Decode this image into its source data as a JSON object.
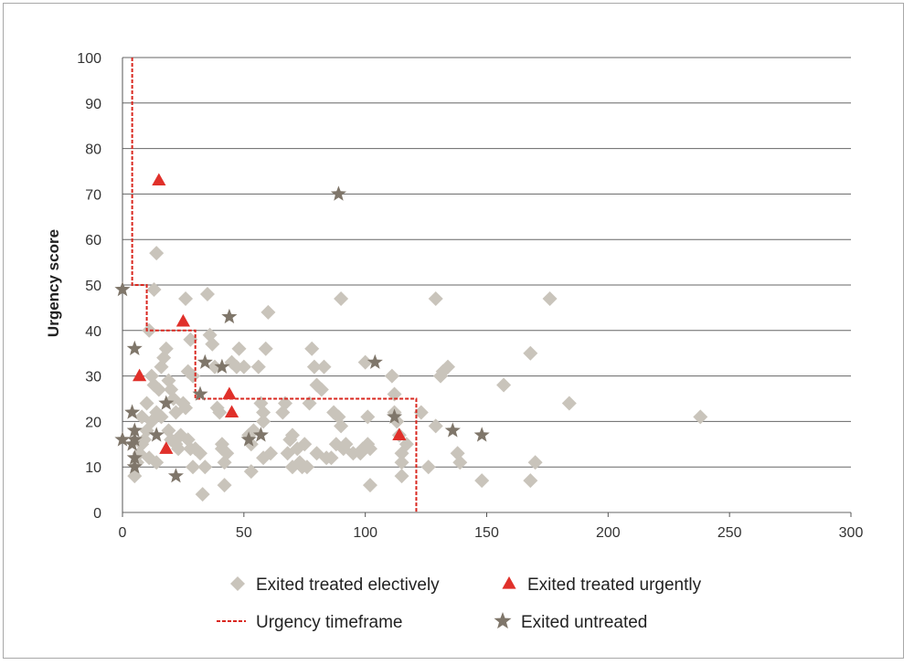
{
  "chart_data": {
    "type": "scatter",
    "title": "",
    "xlabel": "",
    "ylabel": "Urgency score",
    "xlim": [
      0,
      300
    ],
    "ylim": [
      0,
      100
    ],
    "xticks": [
      0,
      50,
      100,
      150,
      200,
      250,
      300
    ],
    "yticks": [
      0,
      10,
      20,
      30,
      40,
      50,
      60,
      70,
      80,
      90,
      100
    ],
    "grid": "horizontal",
    "legend_position": "bottom",
    "series": [
      {
        "name": "Exited treated electively",
        "marker": "diamond",
        "color": "#c9c4bb",
        "points": [
          [
            14,
            57
          ],
          [
            13,
            49
          ],
          [
            11,
            40
          ],
          [
            12,
            30
          ],
          [
            13,
            28
          ],
          [
            15,
            27
          ],
          [
            10,
            24
          ],
          [
            14,
            22
          ],
          [
            16,
            21
          ],
          [
            12,
            20
          ],
          [
            8,
            21
          ],
          [
            10,
            18
          ],
          [
            9,
            16
          ],
          [
            11,
            12
          ],
          [
            14,
            11
          ],
          [
            5,
            8
          ],
          [
            6,
            11
          ],
          [
            7,
            13
          ],
          [
            8,
            15
          ],
          [
            16,
            32
          ],
          [
            17,
            34
          ],
          [
            18,
            36
          ],
          [
            19,
            29
          ],
          [
            20,
            27
          ],
          [
            21,
            25
          ],
          [
            22,
            22
          ],
          [
            19,
            18
          ],
          [
            20,
            16
          ],
          [
            22,
            15
          ],
          [
            23,
            14
          ],
          [
            24,
            17
          ],
          [
            26,
            47
          ],
          [
            28,
            38
          ],
          [
            27,
            31
          ],
          [
            29,
            30
          ],
          [
            25,
            24
          ],
          [
            26,
            23
          ],
          [
            27,
            16
          ],
          [
            28,
            14
          ],
          [
            29,
            10
          ],
          [
            30,
            14
          ],
          [
            32,
            13
          ],
          [
            33,
            4
          ],
          [
            34,
            10
          ],
          [
            35,
            48
          ],
          [
            36,
            39
          ],
          [
            37,
            37
          ],
          [
            38,
            32
          ],
          [
            39,
            23
          ],
          [
            40,
            22
          ],
          [
            41,
            15
          ],
          [
            41,
            14
          ],
          [
            42,
            11
          ],
          [
            43,
            13
          ],
          [
            42,
            6
          ],
          [
            45,
            33
          ],
          [
            47,
            32
          ],
          [
            48,
            36
          ],
          [
            50,
            32
          ],
          [
            52,
            17
          ],
          [
            53,
            15
          ],
          [
            53,
            9
          ],
          [
            54,
            18
          ],
          [
            56,
            32
          ],
          [
            57,
            24
          ],
          [
            58,
            22
          ],
          [
            58,
            20
          ],
          [
            58,
            12
          ],
          [
            59,
            36
          ],
          [
            60,
            44
          ],
          [
            61,
            13
          ],
          [
            66,
            22
          ],
          [
            67,
            24
          ],
          [
            68,
            13
          ],
          [
            69,
            16
          ],
          [
            70,
            17
          ],
          [
            70,
            10
          ],
          [
            72,
            14
          ],
          [
            73,
            11
          ],
          [
            74,
            10
          ],
          [
            75,
            15
          ],
          [
            76,
            10
          ],
          [
            77,
            24
          ],
          [
            78,
            36
          ],
          [
            79,
            32
          ],
          [
            80,
            28
          ],
          [
            80,
            13
          ],
          [
            82,
            27
          ],
          [
            83,
            32
          ],
          [
            84,
            12
          ],
          [
            86,
            12
          ],
          [
            87,
            22
          ],
          [
            88,
            15
          ],
          [
            89,
            21
          ],
          [
            90,
            19
          ],
          [
            90,
            47
          ],
          [
            91,
            14
          ],
          [
            92,
            15
          ],
          [
            95,
            13
          ],
          [
            98,
            13
          ],
          [
            99,
            14
          ],
          [
            100,
            33
          ],
          [
            101,
            15
          ],
          [
            101,
            21
          ],
          [
            102,
            6
          ],
          [
            102,
            14
          ],
          [
            111,
            30
          ],
          [
            112,
            26
          ],
          [
            112,
            22
          ],
          [
            113,
            20
          ],
          [
            114,
            17
          ],
          [
            115,
            13
          ],
          [
            115,
            11
          ],
          [
            115,
            8
          ],
          [
            117,
            15
          ],
          [
            123,
            22
          ],
          [
            126,
            10
          ],
          [
            129,
            19
          ],
          [
            129,
            47
          ],
          [
            131,
            30
          ],
          [
            132,
            31
          ],
          [
            134,
            32
          ],
          [
            138,
            13
          ],
          [
            139,
            11
          ],
          [
            148,
            7
          ],
          [
            157,
            28
          ],
          [
            168,
            7
          ],
          [
            168,
            35
          ],
          [
            170,
            11
          ],
          [
            176,
            47
          ],
          [
            184,
            24
          ],
          [
            238,
            21
          ]
        ]
      },
      {
        "name": "Exited treated urgently",
        "marker": "triangle",
        "color": "#e0302a",
        "points": [
          [
            15,
            73
          ],
          [
            25,
            42
          ],
          [
            7,
            30
          ],
          [
            44,
            26
          ],
          [
            45,
            22
          ],
          [
            18,
            14
          ],
          [
            114,
            17
          ]
        ]
      },
      {
        "name": "Urgency timeframe",
        "marker": "line",
        "color": "#d9271f",
        "points": [
          [
            4,
            100
          ],
          [
            4,
            50
          ],
          [
            10,
            50
          ],
          [
            10,
            40
          ],
          [
            30,
            40
          ],
          [
            30,
            25
          ],
          [
            121,
            25
          ],
          [
            121,
            0
          ]
        ]
      },
      {
        "name": "Exited untreated",
        "marker": "star",
        "color": "#7f766a",
        "points": [
          [
            89,
            70
          ],
          [
            0,
            49
          ],
          [
            44,
            43
          ],
          [
            5,
            36
          ],
          [
            34,
            33
          ],
          [
            41,
            32
          ],
          [
            104,
            33
          ],
          [
            18,
            24
          ],
          [
            32,
            26
          ],
          [
            4,
            22
          ],
          [
            5,
            18
          ],
          [
            14,
            17
          ],
          [
            57,
            17
          ],
          [
            52,
            16
          ],
          [
            112,
            21
          ],
          [
            136,
            18
          ],
          [
            148,
            17
          ],
          [
            0,
            16
          ],
          [
            5,
            16
          ],
          [
            4,
            15
          ],
          [
            5,
            12
          ],
          [
            5,
            10
          ],
          [
            22,
            8
          ]
        ]
      }
    ]
  }
}
